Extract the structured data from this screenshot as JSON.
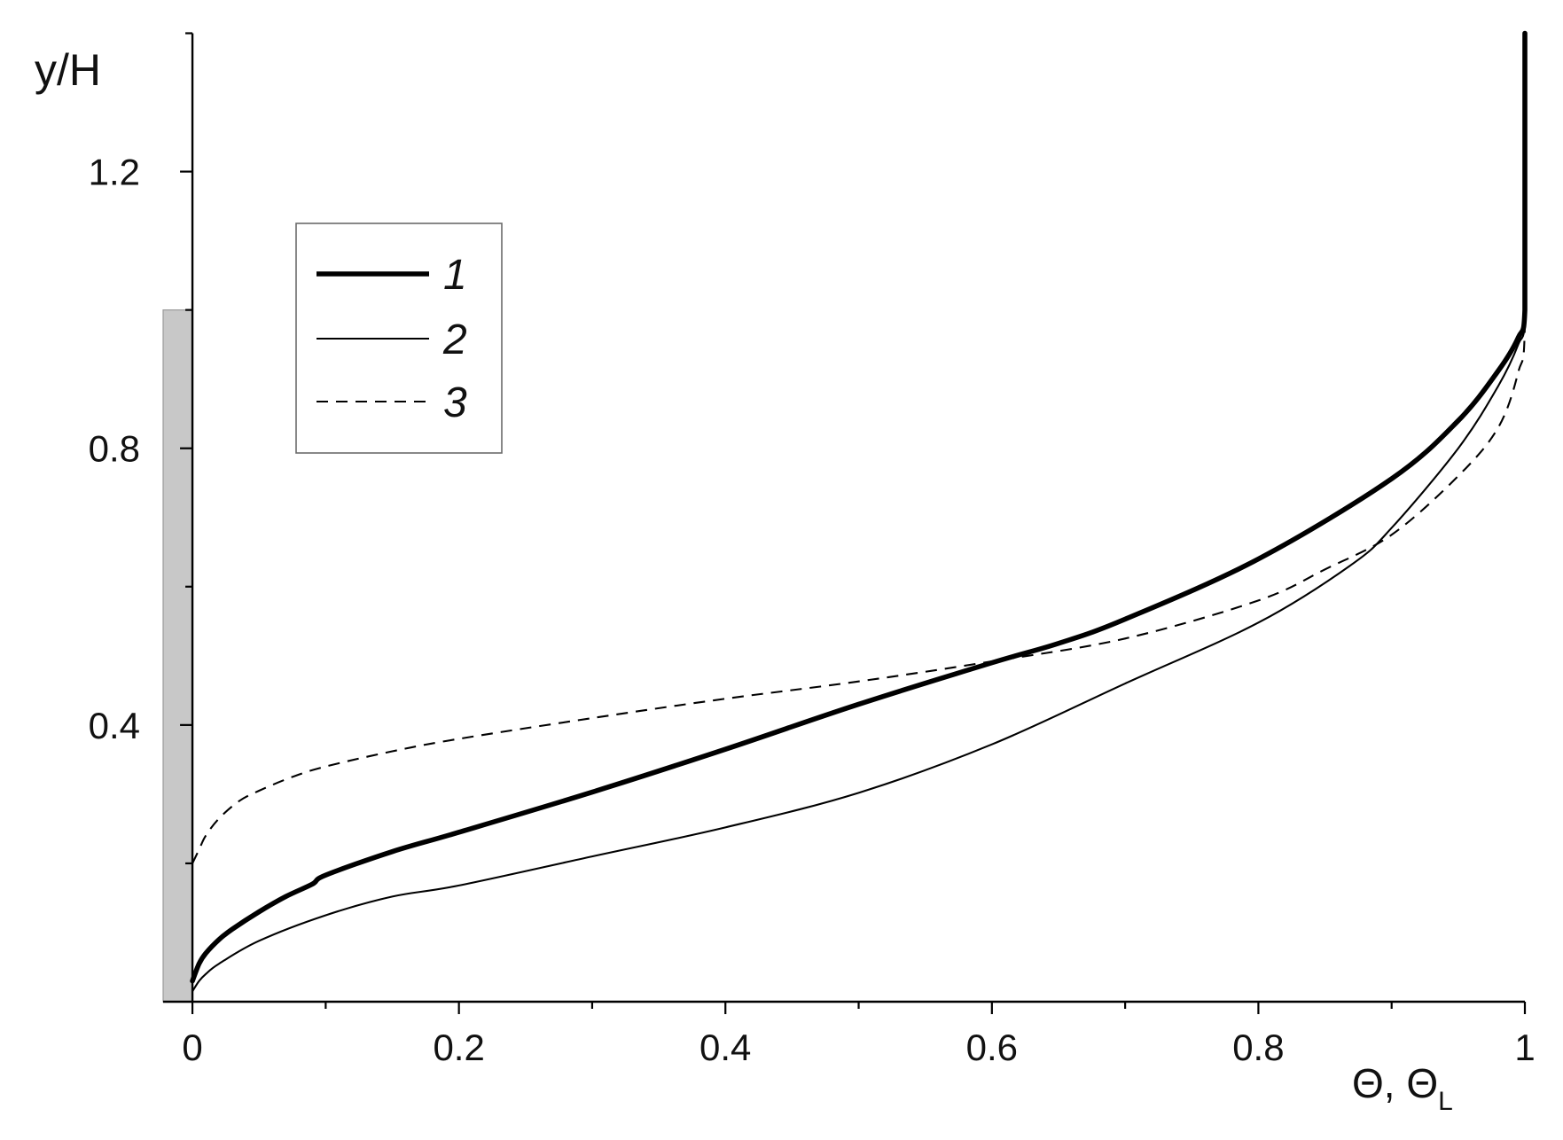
{
  "chart_data": {
    "type": "line",
    "xlabel": {
      "main": "Θ, Θ",
      "sub": "L"
    },
    "ylabel": "y/H",
    "xlim": [
      -0.022,
      1
    ],
    "ylim": [
      0,
      1.4
    ],
    "x_ticks": [
      0,
      0.2,
      0.4,
      0.6,
      0.8,
      1
    ],
    "x_tick_labels": [
      "0",
      "0.2",
      "0.4",
      "0.6",
      "0.8",
      "1"
    ],
    "x_minor_ticks": [
      0.1,
      0.3,
      0.5,
      0.7,
      0.9
    ],
    "y_ticks": [
      0.4,
      0.8,
      1.2
    ],
    "y_tick_labels": [
      "0.4",
      "0.8",
      "1.2"
    ],
    "y_minor_ticks": [
      0.2,
      0.6,
      1.0,
      1.4
    ],
    "grid": false,
    "legend": {
      "placement": "top-left"
    },
    "line_color": "#000000",
    "shaded_region": {
      "x": [
        -0.022,
        0
      ],
      "y": [
        0,
        1.0
      ],
      "color": "#c8c8c8"
    },
    "series": [
      {
        "name": "1",
        "line_style": "bold-solid",
        "x": [
          0,
          0.005,
          0.01,
          0.02,
          0.03,
          0.05,
          0.07,
          0.09,
          0.1,
          0.15,
          0.2,
          0.3,
          0.4,
          0.5,
          0.6,
          0.65,
          0.7,
          0.8,
          0.9,
          0.95,
          0.98,
          0.995,
          1,
          1
        ],
        "y": [
          0.03,
          0.055,
          0.07,
          0.09,
          0.105,
          0.13,
          0.152,
          0.17,
          0.183,
          0.217,
          0.245,
          0.303,
          0.365,
          0.43,
          0.49,
          0.518,
          0.553,
          0.64,
          0.756,
          0.84,
          0.912,
          0.96,
          1.0,
          1.4
        ]
      },
      {
        "name": "2",
        "line_style": "solid",
        "x": [
          0,
          0.005,
          0.01,
          0.02,
          0.05,
          0.1,
          0.15,
          0.2,
          0.3,
          0.4,
          0.5,
          0.6,
          0.7,
          0.8,
          0.87,
          0.9,
          0.95,
          0.98,
          0.995,
          1,
          1
        ],
        "y": [
          0.015,
          0.03,
          0.04,
          0.055,
          0.088,
          0.125,
          0.152,
          0.168,
          0.21,
          0.252,
          0.302,
          0.372,
          0.46,
          0.548,
          0.632,
          0.685,
          0.8,
          0.89,
          0.95,
          0.99,
          1.4
        ]
      },
      {
        "name": "3",
        "line_style": "dashed",
        "x": [
          0,
          0.005,
          0.01,
          0.02,
          0.035,
          0.05,
          0.075,
          0.1,
          0.15,
          0.2,
          0.3,
          0.4,
          0.5,
          0.6,
          0.7,
          0.8,
          0.85,
          0.9,
          0.95,
          0.98,
          0.995,
          1,
          1
        ],
        "y": [
          0.2,
          0.22,
          0.24,
          0.265,
          0.29,
          0.305,
          0.325,
          0.34,
          0.362,
          0.38,
          0.41,
          0.438,
          0.463,
          0.492,
          0.525,
          0.58,
          0.625,
          0.675,
          0.76,
          0.83,
          0.91,
          0.98,
          1.4
        ]
      }
    ]
  }
}
